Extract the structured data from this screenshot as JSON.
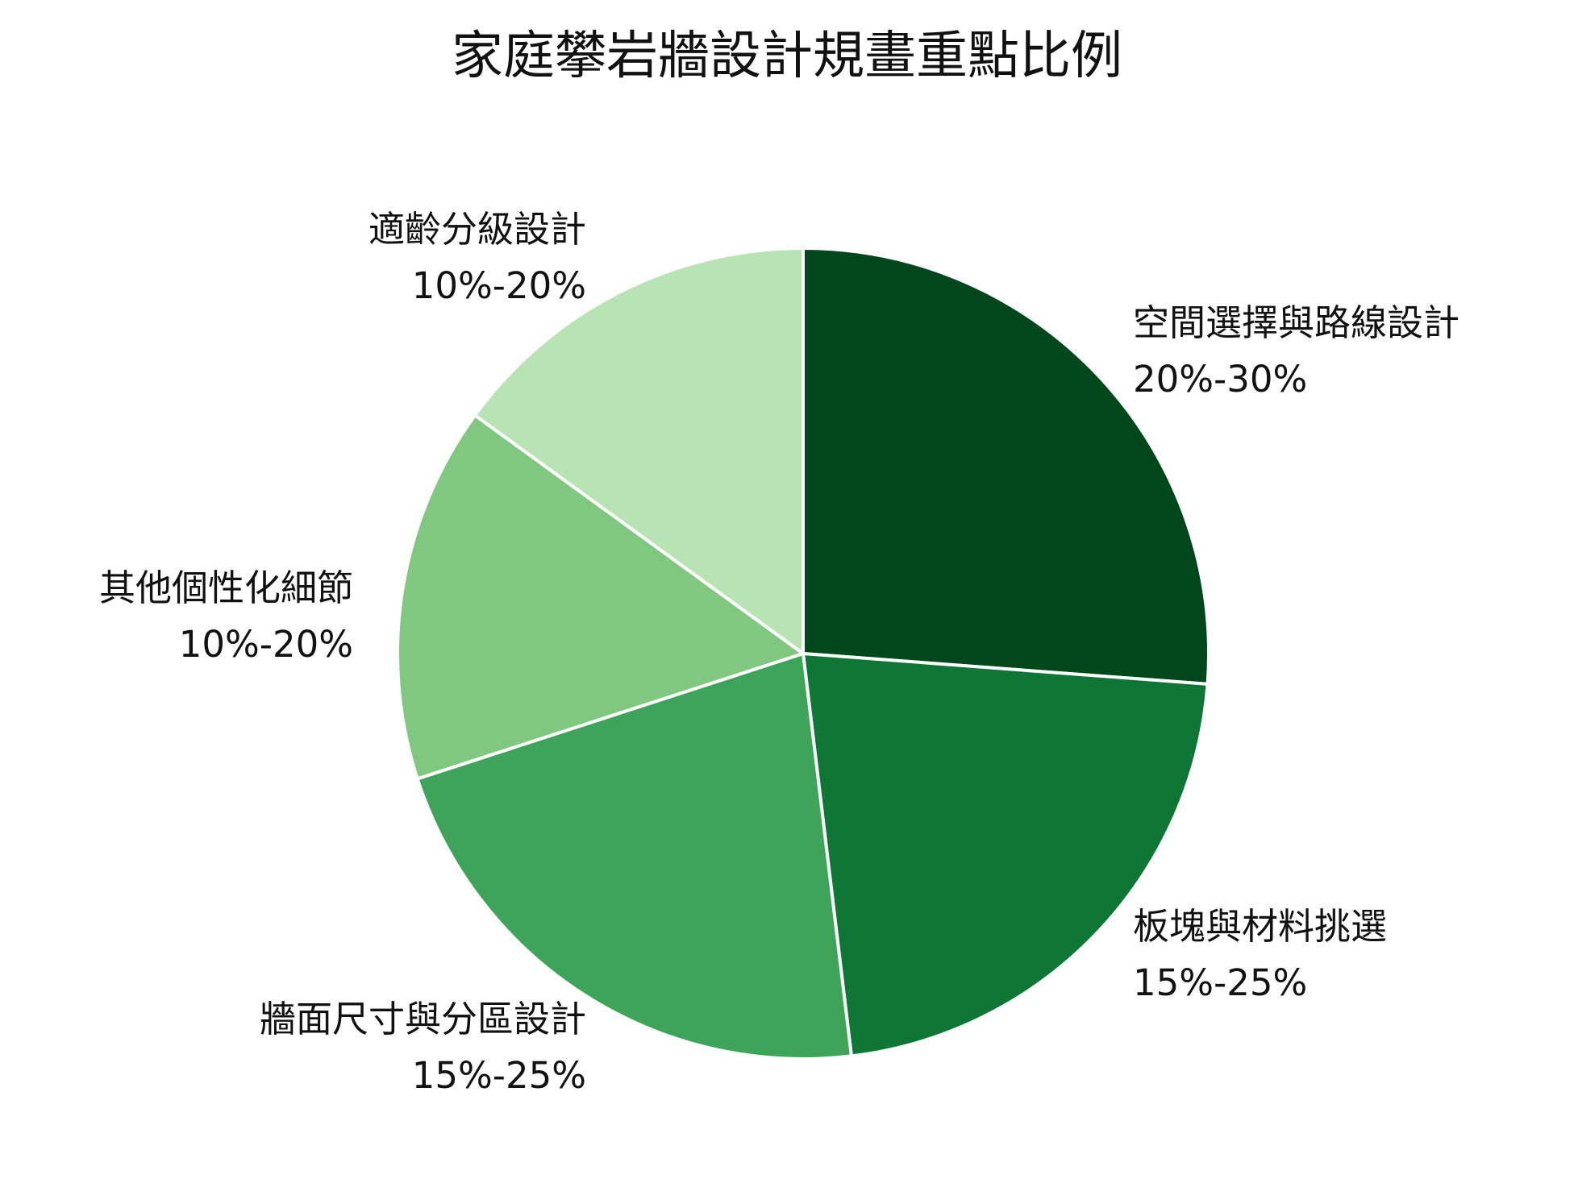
{
  "chart_data": {
    "type": "pie",
    "title": "家庭攀岩牆設計規畫重點比例",
    "start_angle_deg": 90,
    "direction": "clockwise",
    "slices": [
      {
        "name": "空間選擇與路線設計",
        "range_label": "20%-30%",
        "value": 26.2,
        "color": "#00471b"
      },
      {
        "name": "板塊與材料挑選",
        "range_label": "15%-25%",
        "value": 21.9,
        "color": "#0f7736"
      },
      {
        "name": "牆面尺寸與分區設計",
        "range_label": "15%-25%",
        "value": 21.9,
        "color": "#3da45a"
      },
      {
        "name": "其他個性化細節",
        "range_label": "10%-20%",
        "value": 15.0,
        "color": "#80c880"
      },
      {
        "name": "適齡分級設計",
        "range_label": "10%-20%",
        "value": 15.0,
        "color": "#b8e3b3"
      }
    ]
  }
}
